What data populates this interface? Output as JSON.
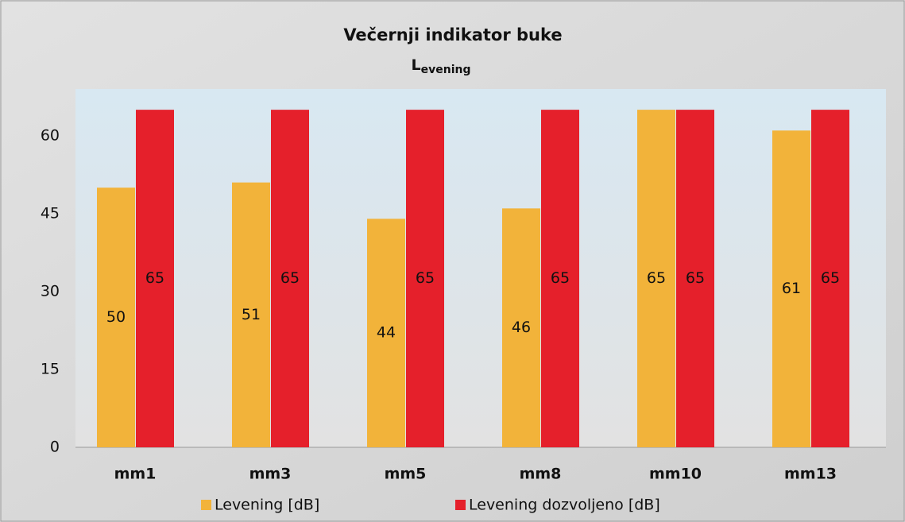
{
  "chart_data": {
    "type": "bar",
    "title": "Večernji indikator buke",
    "subtitle": [
      "L",
      "evening"
    ],
    "categories": [
      "mm1",
      "mm3",
      "mm5",
      "mm8",
      "mm10",
      "mm13"
    ],
    "series": [
      {
        "name": "Levening [dB]",
        "color": "#f2b33a",
        "values": [
          50,
          51,
          44,
          46,
          65,
          61
        ]
      },
      {
        "name": "Levening dozvoljeno [dB]",
        "color": "#e5202b",
        "values": [
          65,
          65,
          65,
          65,
          65,
          65
        ]
      }
    ],
    "ylim": [
      0,
      69
    ],
    "yticks": [
      0,
      15,
      30,
      45,
      60
    ],
    "grid": false,
    "legend": "bottom"
  }
}
